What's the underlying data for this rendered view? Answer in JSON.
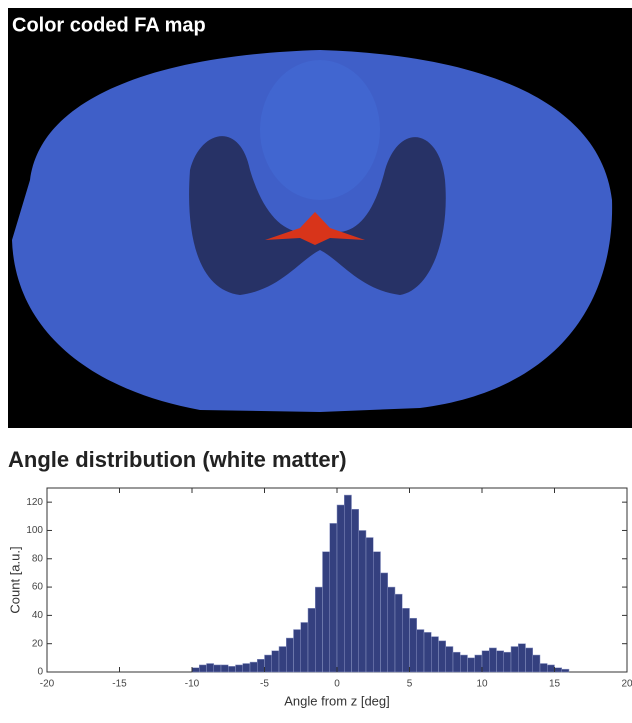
{
  "image_title": "Color coded FA map",
  "chart_data": {
    "type": "histogram",
    "title": "Angle distribution (white matter)",
    "xlabel": "Angle from z [deg]",
    "ylabel": "Count [a.u.]",
    "bins": [
      -10,
      -9.5,
      -9,
      -8.5,
      -8,
      -7.5,
      -7,
      -6.5,
      -6,
      -5.5,
      -5,
      -4.5,
      -4,
      -3.5,
      -3,
      -2.5,
      -2,
      -1.5,
      -1,
      -0.5,
      0,
      0.5,
      1,
      1.5,
      2,
      2.5,
      3,
      3.5,
      4,
      4.5,
      5,
      5.5,
      6,
      6.5,
      7,
      7.5,
      8,
      8.5,
      9,
      9.5,
      10,
      10.5,
      11,
      11.5,
      12,
      12.5,
      13,
      13.5,
      14,
      14.5,
      15,
      15.5,
      16
    ],
    "values": [
      3,
      5,
      6,
      5,
      5,
      4,
      5,
      6,
      7,
      9,
      12,
      15,
      18,
      24,
      30,
      35,
      45,
      60,
      85,
      105,
      118,
      125,
      115,
      100,
      95,
      85,
      70,
      60,
      55,
      45,
      38,
      30,
      28,
      25,
      22,
      18,
      14,
      12,
      10,
      12,
      15,
      17,
      15,
      14,
      18,
      20,
      17,
      12,
      6,
      5,
      3,
      2
    ],
    "color": "#34407f",
    "xlim": [
      -20,
      20
    ],
    "xticks": [
      -20,
      -15,
      -10,
      -5,
      0,
      5,
      10,
      15,
      20
    ],
    "ylim": [
      0,
      130
    ],
    "yticks": [
      0,
      20,
      40,
      60,
      80,
      100,
      120
    ]
  }
}
